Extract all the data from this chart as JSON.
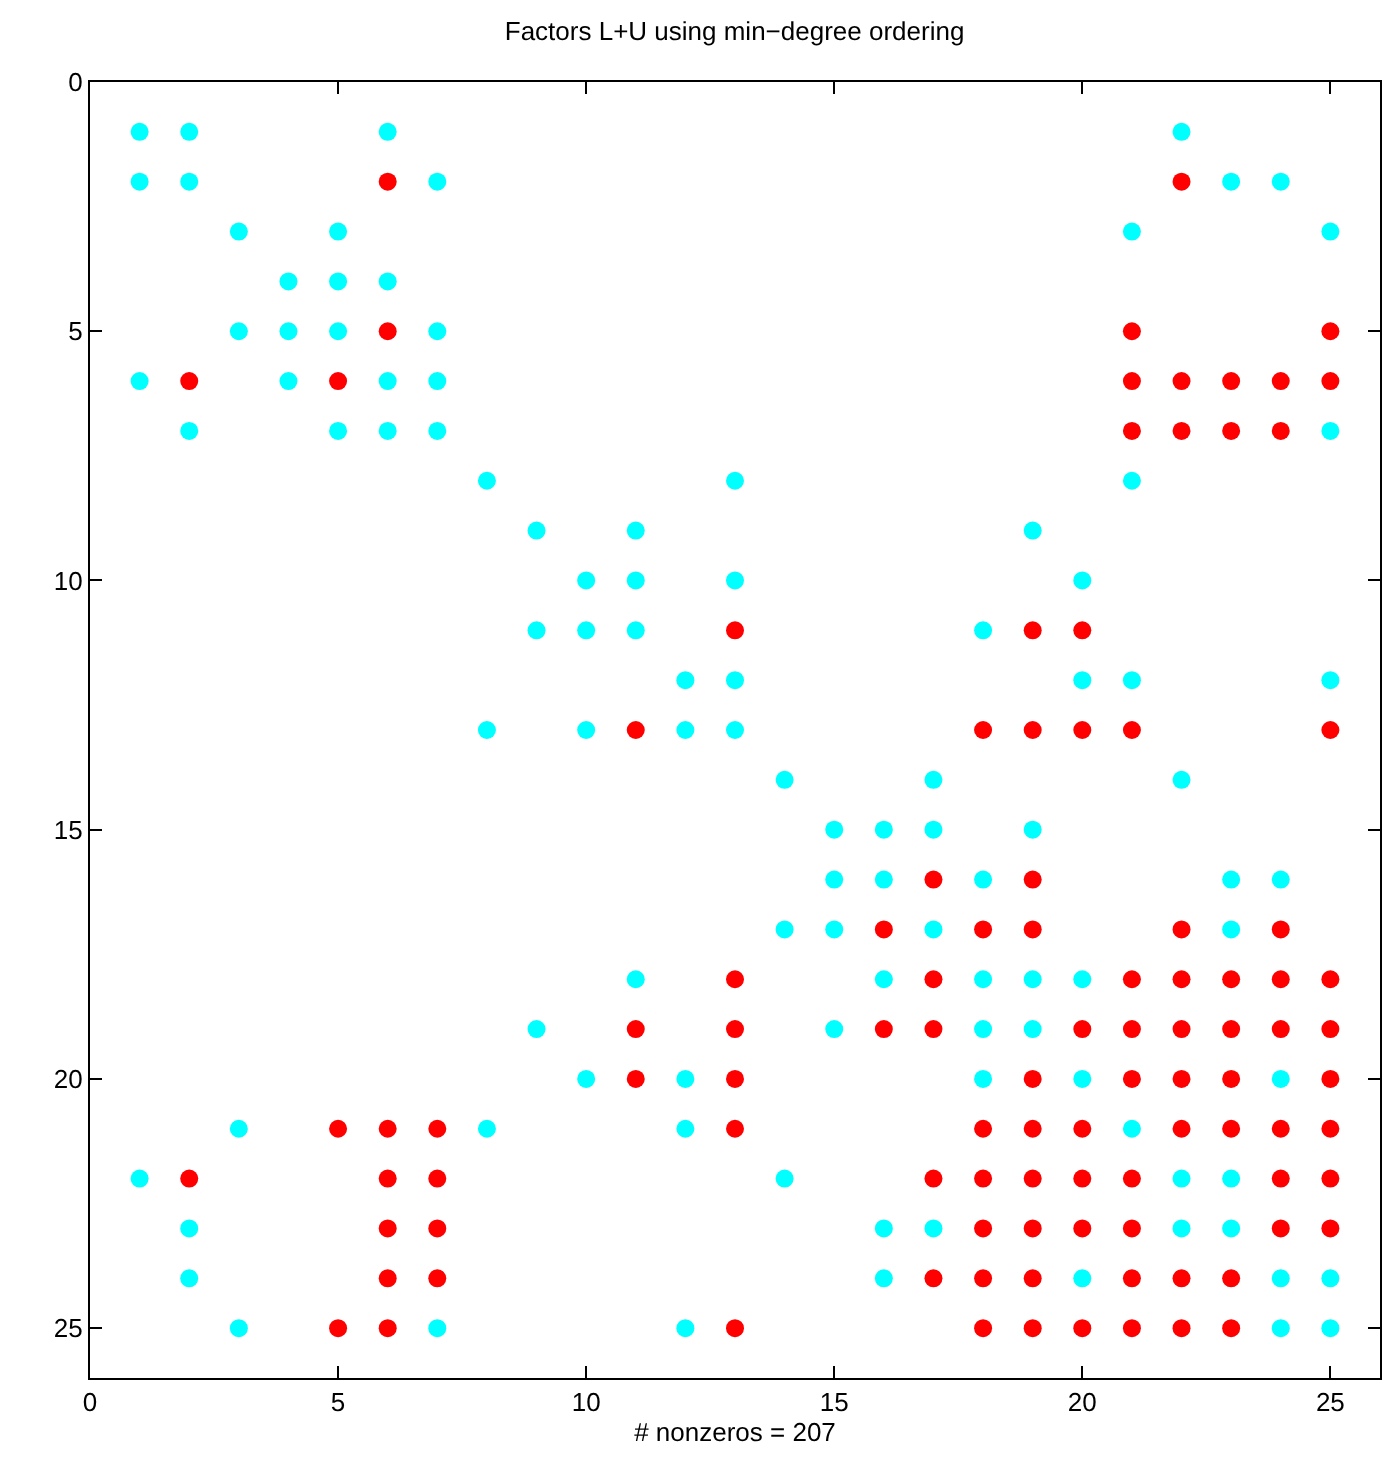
{
  "chart_data": {
    "type": "scatter",
    "title": "Factors L+U using min−degree ordering",
    "xlabel": "# nonzeros = 207",
    "xlim": [
      0,
      26
    ],
    "ylim": [
      26,
      0
    ],
    "xticks": [
      0,
      5,
      10,
      15,
      20,
      25
    ],
    "yticks": [
      0,
      5,
      10,
      15,
      20,
      25
    ],
    "marker": "circle",
    "series": [
      {
        "color": "#00ffff",
        "x": [
          1,
          2,
          6,
          22,
          1,
          2,
          7,
          23,
          24,
          3,
          5,
          21,
          25,
          4,
          5,
          6,
          3,
          4,
          5,
          7,
          1,
          4,
          6,
          7,
          2,
          5,
          6,
          7,
          25,
          8,
          13,
          21,
          9,
          11,
          19,
          10,
          11,
          13,
          20,
          9,
          10,
          11,
          18,
          12,
          13,
          20,
          21,
          25,
          8,
          10,
          12,
          13,
          14,
          17,
          22,
          15,
          16,
          17,
          19,
          15,
          16,
          18,
          23,
          24,
          14,
          15,
          17,
          23,
          11,
          16,
          18,
          19,
          20,
          9,
          15,
          18,
          19,
          10,
          12,
          18,
          20,
          24,
          3,
          8,
          12,
          21,
          1,
          14,
          22,
          23,
          2,
          16,
          17,
          22,
          23,
          2,
          16,
          20,
          24,
          25,
          3,
          7,
          12,
          24,
          25
        ],
        "values": [
          1,
          1,
          1,
          1,
          2,
          2,
          2,
          2,
          2,
          3,
          3,
          3,
          3,
          4,
          4,
          4,
          5,
          5,
          5,
          5,
          6,
          6,
          6,
          6,
          7,
          7,
          7,
          7,
          7,
          8,
          8,
          8,
          9,
          9,
          9,
          10,
          10,
          10,
          10,
          11,
          11,
          11,
          11,
          12,
          12,
          12,
          12,
          12,
          13,
          13,
          13,
          13,
          14,
          14,
          14,
          15,
          15,
          15,
          15,
          16,
          16,
          16,
          16,
          16,
          17,
          17,
          17,
          17,
          18,
          18,
          18,
          18,
          18,
          19,
          19,
          19,
          19,
          20,
          20,
          20,
          20,
          20,
          21,
          21,
          21,
          21,
          22,
          22,
          22,
          22,
          23,
          23,
          23,
          23,
          23,
          24,
          24,
          24,
          24,
          24,
          25,
          25,
          25,
          25,
          25
        ]
      },
      {
        "color": "#ff0000",
        "x": [
          6,
          22,
          6,
          21,
          25,
          2,
          5,
          21,
          22,
          23,
          24,
          25,
          21,
          22,
          23,
          24,
          13,
          19,
          20,
          11,
          18,
          19,
          20,
          21,
          25,
          17,
          19,
          16,
          18,
          19,
          22,
          24,
          13,
          17,
          21,
          22,
          23,
          24,
          25,
          11,
          13,
          16,
          17,
          20,
          21,
          22,
          23,
          24,
          25,
          11,
          13,
          19,
          21,
          22,
          23,
          25,
          5,
          6,
          7,
          13,
          18,
          19,
          20,
          22,
          23,
          24,
          25,
          2,
          6,
          7,
          17,
          18,
          19,
          20,
          21,
          24,
          25,
          6,
          7,
          18,
          19,
          20,
          21,
          24,
          25,
          6,
          7,
          17,
          18,
          19,
          21,
          22,
          23,
          5,
          6,
          13,
          18,
          19,
          20,
          21,
          22,
          23
        ],
        "values": [
          2,
          2,
          5,
          5,
          5,
          6,
          6,
          6,
          6,
          6,
          6,
          6,
          7,
          7,
          7,
          7,
          11,
          11,
          11,
          13,
          13,
          13,
          13,
          13,
          13,
          16,
          16,
          17,
          17,
          17,
          17,
          17,
          18,
          18,
          18,
          18,
          18,
          18,
          18,
          19,
          19,
          19,
          19,
          19,
          19,
          19,
          19,
          19,
          19,
          20,
          20,
          20,
          20,
          20,
          20,
          20,
          21,
          21,
          21,
          21,
          21,
          21,
          21,
          21,
          21,
          21,
          21,
          22,
          22,
          22,
          22,
          22,
          22,
          22,
          22,
          22,
          22,
          23,
          23,
          23,
          23,
          23,
          23,
          23,
          23,
          24,
          24,
          24,
          24,
          24,
          24,
          24,
          24,
          25,
          25,
          25,
          25,
          25,
          25,
          25,
          25,
          25
        ]
      }
    ]
  }
}
